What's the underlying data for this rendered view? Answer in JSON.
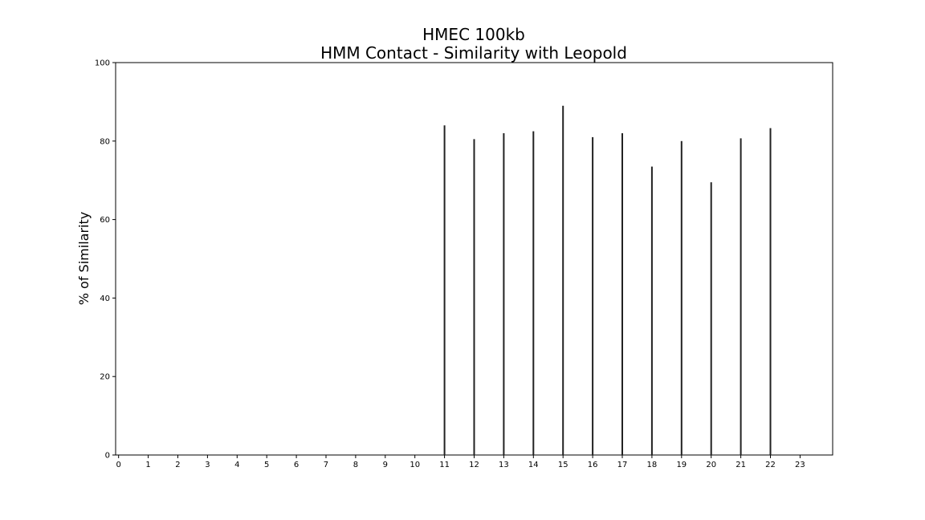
{
  "chart_data": {
    "type": "bar",
    "title": [
      "HMEC 100kb",
      "HMM Contact - Similarity with Leopold"
    ],
    "xlabel": "",
    "ylabel": "% of Similarity",
    "xlim": [
      -0.1,
      24.1
    ],
    "ylim": [
      0,
      100
    ],
    "x_ticks": [
      "0",
      "1",
      "2",
      "3",
      "4",
      "5",
      "6",
      "7",
      "8",
      "9",
      "10",
      "11",
      "12",
      "13",
      "14",
      "15",
      "16",
      "17",
      "18",
      "19",
      "20",
      "21",
      "22",
      "23"
    ],
    "y_ticks": [
      "0",
      "20",
      "40",
      "60",
      "80",
      "100"
    ],
    "categories": [
      "11",
      "12",
      "13",
      "14",
      "15",
      "16",
      "17",
      "18",
      "19",
      "20",
      "21",
      "22"
    ],
    "x": [
      11,
      12,
      13,
      14,
      15,
      16,
      17,
      18,
      19,
      20,
      21,
      22
    ],
    "values": [
      84,
      80.5,
      82,
      82.5,
      89,
      81,
      82,
      73.5,
      80,
      69.5,
      80.7,
      83.3
    ],
    "bar_color": "#222222",
    "grid": false,
    "legend": "none"
  }
}
